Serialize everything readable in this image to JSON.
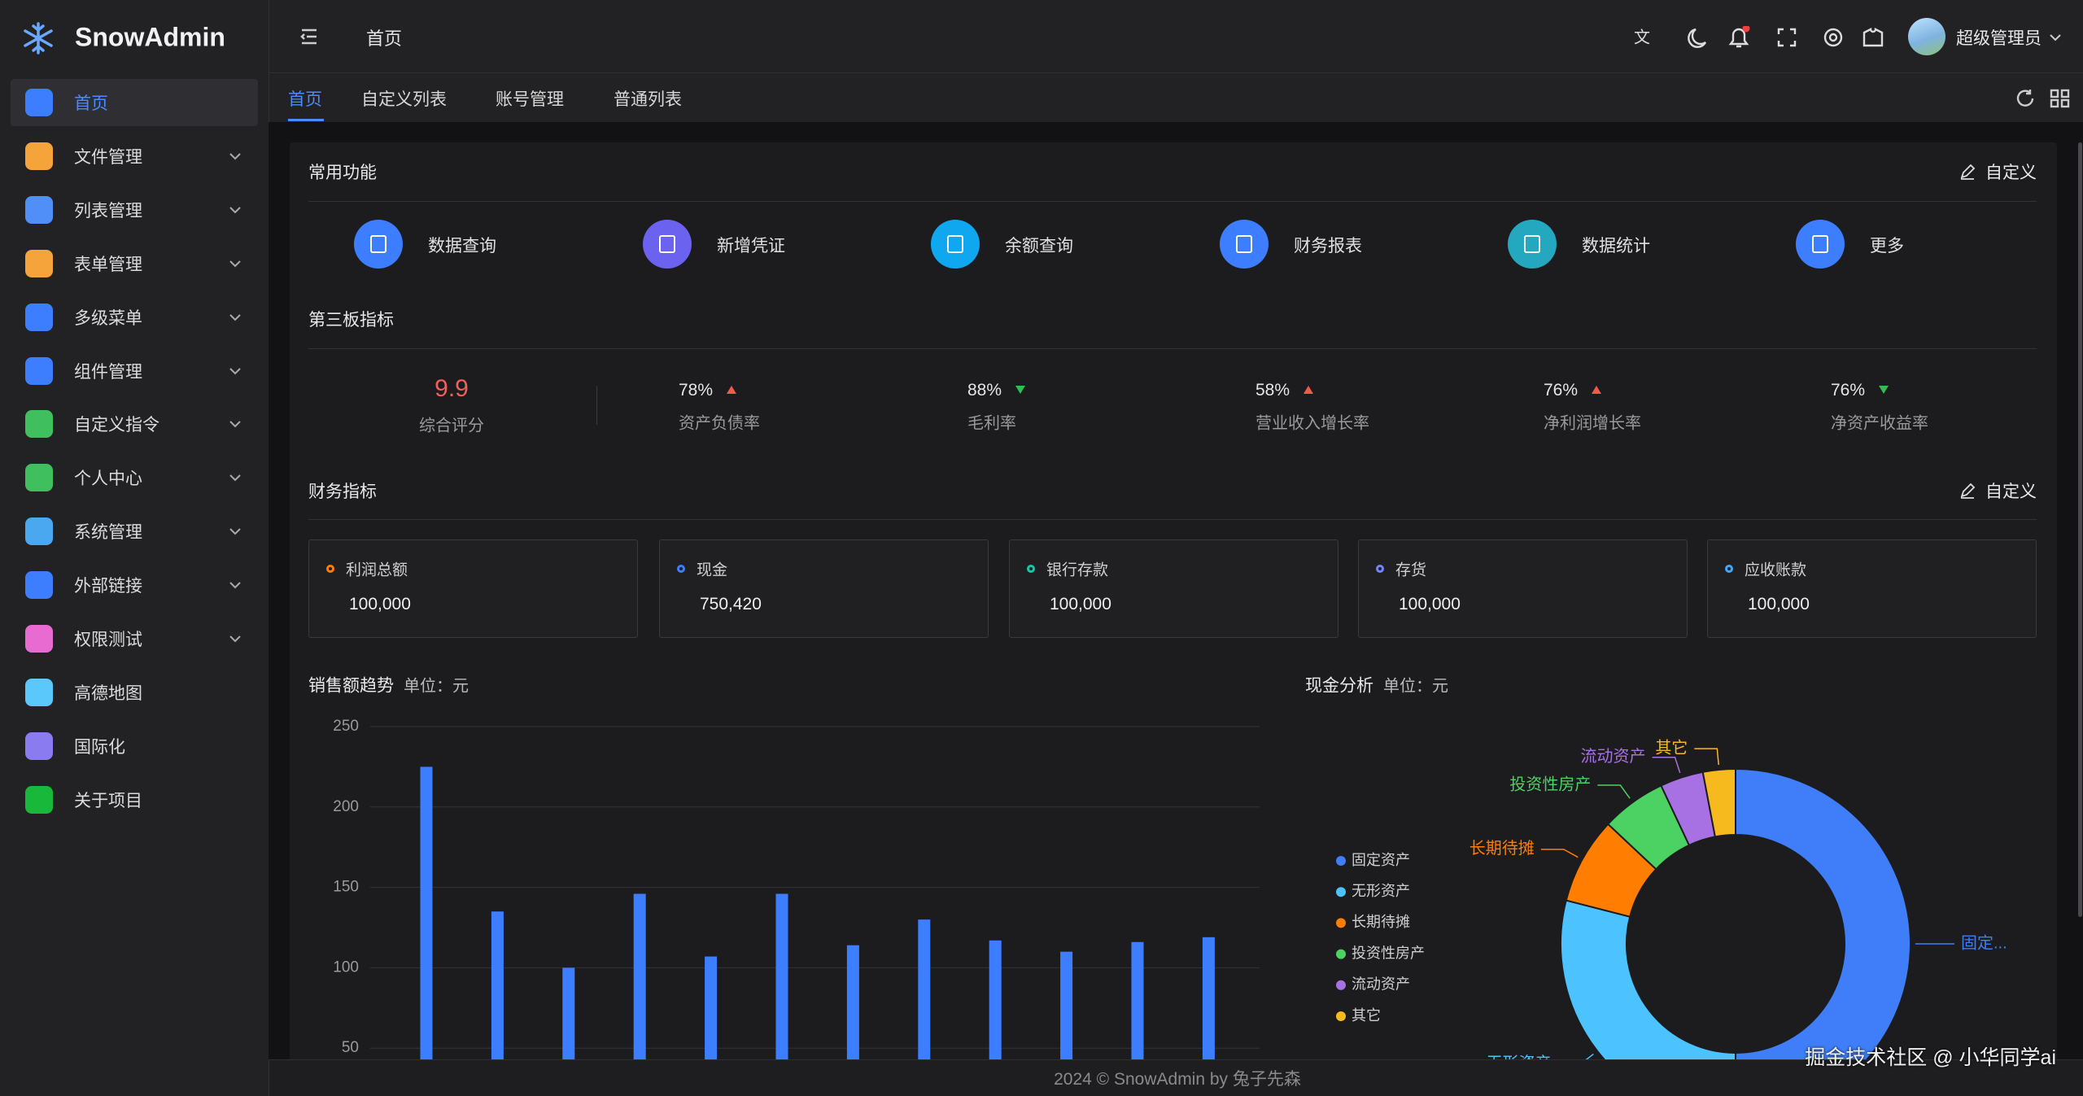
{
  "sidebar": {
    "brand": "SnowAdmin",
    "menu": [
      {
        "label": "首页",
        "icon_color": "#3c7eff",
        "active": true
      },
      {
        "label": "文件管理",
        "icon_color": "#f5a33b",
        "expandable": true
      },
      {
        "label": "列表管理",
        "icon_color": "#4f8ff7",
        "expandable": true
      },
      {
        "label": "表单管理",
        "icon_color": "#f5a33b",
        "expandable": true
      },
      {
        "label": "多级菜单",
        "icon_color": "#3c7eff",
        "expandable": true
      },
      {
        "label": "组件管理",
        "icon_color": "#3c7eff",
        "expandable": true
      },
      {
        "label": "自定义指令",
        "icon_color": "#3fbf5e",
        "expandable": true
      },
      {
        "label": "个人中心",
        "icon_color": "#3fbf5e",
        "expandable": true
      },
      {
        "label": "系统管理",
        "icon_color": "#4aa8f0",
        "expandable": true
      },
      {
        "label": "外部链接",
        "icon_color": "#3c7eff",
        "expandable": true
      },
      {
        "label": "权限测试",
        "icon_color": "#e86bd1",
        "expandable": true
      },
      {
        "label": "高德地图",
        "icon_color": "#5ac8fa"
      },
      {
        "label": "国际化",
        "icon_color": "#8a7cf0"
      },
      {
        "label": "关于项目",
        "icon_color": "#18b83a"
      }
    ]
  },
  "header": {
    "breadcrumb": "首页",
    "user": "超级管理员"
  },
  "tabs": {
    "items": [
      "首页",
      "自定义列表",
      "账号管理",
      "普通列表"
    ],
    "active": 0
  },
  "common": {
    "title": "常用功能",
    "action": "自定义",
    "items": [
      {
        "label": "数据查询",
        "color": "#3c7eff"
      },
      {
        "label": "新增凭证",
        "color": "#6b62f0"
      },
      {
        "label": "余额查询",
        "color": "#0fa7f0"
      },
      {
        "label": "财务报表",
        "color": "#3c7eff"
      },
      {
        "label": "数据统计",
        "color": "#23a8c0"
      },
      {
        "label": "更多",
        "color": "#3c7eff"
      }
    ]
  },
  "board": {
    "title": "第三板指标",
    "score": {
      "value": 9.9,
      "label": "综合评分"
    },
    "items": [
      {
        "value": "78%",
        "label": "资产负债率",
        "trend": "up"
      },
      {
        "value": "88%",
        "label": "毛利率",
        "trend": "down"
      },
      {
        "value": "58%",
        "label": "营业收入增长率",
        "trend": "up"
      },
      {
        "value": "76%",
        "label": "净利润增长率",
        "trend": "up"
      },
      {
        "value": "76%",
        "label": "净资产收益率",
        "trend": "down"
      }
    ]
  },
  "finance": {
    "title": "财务指标",
    "action": "自定义",
    "items": [
      {
        "label": "利润总额",
        "value": "100,000",
        "color": "#ff7d00"
      },
      {
        "label": "现金",
        "value": "750,420",
        "color": "#3c7eff"
      },
      {
        "label": "银行存款",
        "value": "100,000",
        "color": "#14c9a9"
      },
      {
        "label": "存货",
        "value": "100,000",
        "color": "#6f86ff"
      },
      {
        "label": "应收账款",
        "value": "100,000",
        "color": "#3ca9ff"
      }
    ]
  },
  "chart_data": [
    {
      "type": "bar",
      "title": "销售额趋势",
      "subtitle": "单位：元",
      "values": [
        225,
        135,
        100,
        146,
        107,
        146,
        114,
        130,
        117,
        110,
        116,
        119
      ],
      "color": "#3c7eff",
      "ylim": [
        0,
        250
      ],
      "yticks": [
        50,
        100,
        150,
        200,
        250
      ],
      "grid": true
    },
    {
      "type": "donut",
      "title": "现金分析",
      "subtitle": "单位：元",
      "categories": [
        "固定资产",
        "无形资产",
        "长期待摊",
        "投资性房产",
        "流动资产",
        "其它"
      ],
      "values": [
        50,
        29,
        8,
        6,
        4,
        3
      ],
      "colors": [
        "#3f7ef8",
        "#4cc3ff",
        "#ff7d00",
        "#4cd263",
        "#a871e3",
        "#f7ba1e"
      ],
      "slice_labels": [
        "固定...",
        "无形资产",
        "长期待摊",
        "投资性房产",
        "流动资产",
        "其它"
      ]
    }
  ],
  "footer": "2024 © SnowAdmin by 兔子先森",
  "watermark": "掘金技术社区 @ 小华同学ai"
}
